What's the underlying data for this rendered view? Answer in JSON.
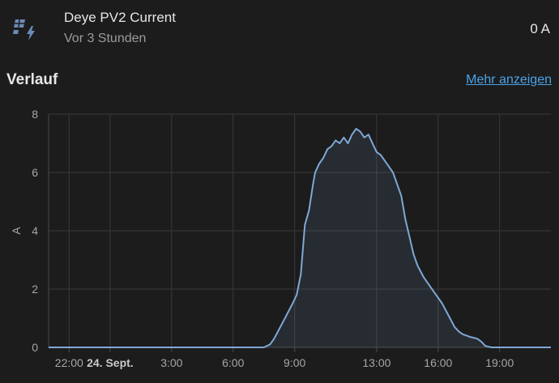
{
  "entity": {
    "icon": "solar-panel-bolt-icon",
    "title": "Deye PV2 Current",
    "last_changed": "Vor 3 Stunden",
    "state": "0 A"
  },
  "history": {
    "section_title": "Verlauf",
    "more_link": "Mehr anzeigen"
  },
  "chart_data": {
    "type": "area",
    "title": "",
    "xlabel": "",
    "ylabel": "A",
    "ylim": [
      0,
      8
    ],
    "y_ticks": [
      0,
      2,
      4,
      6,
      8
    ],
    "x_range_hours": [
      21,
      45.5
    ],
    "x_ticks": [
      {
        "label": "22:00",
        "hour": 22,
        "bold": false
      },
      {
        "label": "24. Sept.",
        "hour": 24,
        "bold": true
      },
      {
        "label": "3:00",
        "hour": 27,
        "bold": false
      },
      {
        "label": "6:00",
        "hour": 30,
        "bold": false
      },
      {
        "label": "9:00",
        "hour": 33,
        "bold": false
      },
      {
        "label": "13:00",
        "hour": 37,
        "bold": false
      },
      {
        "label": "16:00",
        "hour": 40,
        "bold": false
      },
      {
        "label": "19:00",
        "hour": 43,
        "bold": false
      }
    ],
    "grid": true,
    "line_color": "#7fa8d6",
    "series": [
      {
        "x": [
          21,
          31.5,
          31.8,
          32.0,
          32.3,
          32.6,
          32.9,
          33.1,
          33.3,
          33.5,
          33.7,
          33.9,
          34.0,
          34.2,
          34.4,
          34.6,
          34.8,
          35.0,
          35.2,
          35.4,
          35.6,
          35.8,
          36.0,
          36.2,
          36.4,
          36.6,
          36.8,
          37.0,
          37.2,
          37.4,
          37.6,
          37.8,
          38.0,
          38.2,
          38.4,
          38.6,
          38.8,
          39.0,
          39.3,
          39.6,
          39.9,
          40.2,
          40.5,
          40.8,
          41.0,
          41.2,
          41.4,
          41.6,
          41.9,
          42.1,
          42.3,
          42.6,
          42.9,
          43.2,
          45.5
        ],
        "y": [
          0,
          0,
          0.1,
          0.3,
          0.7,
          1.1,
          1.5,
          1.8,
          2.5,
          4.2,
          4.7,
          5.6,
          6.0,
          6.3,
          6.5,
          6.8,
          6.9,
          7.1,
          7.0,
          7.2,
          7.0,
          7.3,
          7.5,
          7.4,
          7.2,
          7.3,
          7.0,
          6.7,
          6.6,
          6.4,
          6.2,
          6.0,
          5.6,
          5.2,
          4.4,
          3.8,
          3.2,
          2.8,
          2.4,
          2.1,
          1.8,
          1.5,
          1.1,
          0.7,
          0.55,
          0.45,
          0.4,
          0.35,
          0.3,
          0.2,
          0.05,
          0,
          0,
          0,
          0
        ]
      }
    ]
  }
}
